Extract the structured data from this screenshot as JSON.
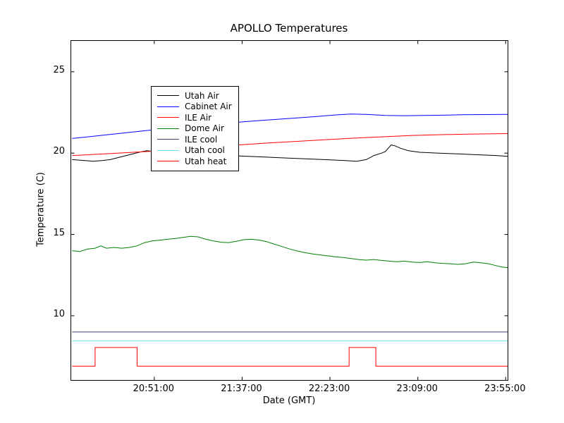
{
  "chart_data": {
    "type": "line",
    "title": "APOLLO Temperatures",
    "xlabel": "Date (GMT)",
    "ylabel": "Temperature (C)",
    "grid": false,
    "legend_position": "upper-left",
    "x_axis": {
      "unit": "minutes since midnight GMT",
      "lim": [
        1207.5,
        1436
      ],
      "ticks": [
        {
          "minute": 1251,
          "label": "20:51:00"
        },
        {
          "minute": 1297,
          "label": "21:37:00"
        },
        {
          "minute": 1343,
          "label": "22:23:00"
        },
        {
          "minute": 1389,
          "label": "23:09:00"
        },
        {
          "minute": 1435,
          "label": "23:55:00"
        }
      ]
    },
    "y_axis": {
      "lim": [
        6.05,
        26.9
      ],
      "ticks": [
        10,
        15,
        20,
        25
      ]
    },
    "series": [
      {
        "name": "Utah Air",
        "color": "#000000",
        "points": [
          [
            1208,
            19.6
          ],
          [
            1214,
            19.55
          ],
          [
            1219,
            19.5
          ],
          [
            1224,
            19.55
          ],
          [
            1228,
            19.6
          ],
          [
            1233,
            19.75
          ],
          [
            1238,
            19.9
          ],
          [
            1243,
            20.05
          ],
          [
            1247,
            20.15
          ],
          [
            1251,
            20.1
          ],
          [
            1256,
            20.05
          ],
          [
            1262,
            20.0
          ],
          [
            1270,
            19.95
          ],
          [
            1280,
            19.9
          ],
          [
            1290,
            19.85
          ],
          [
            1300,
            19.8
          ],
          [
            1310,
            19.75
          ],
          [
            1320,
            19.7
          ],
          [
            1330,
            19.65
          ],
          [
            1340,
            19.6
          ],
          [
            1350,
            19.55
          ],
          [
            1357,
            19.5
          ],
          [
            1362,
            19.6
          ],
          [
            1366,
            19.85
          ],
          [
            1370,
            20.0
          ],
          [
            1372,
            20.1
          ],
          [
            1375,
            20.5
          ],
          [
            1377,
            20.45
          ],
          [
            1380,
            20.3
          ],
          [
            1384,
            20.15
          ],
          [
            1390,
            20.05
          ],
          [
            1400,
            20.0
          ],
          [
            1410,
            19.95
          ],
          [
            1420,
            19.9
          ],
          [
            1430,
            19.85
          ],
          [
            1436,
            19.8
          ]
        ]
      },
      {
        "name": "Cabinet Air",
        "color": "#0000ff",
        "points": [
          [
            1208,
            20.9
          ],
          [
            1220,
            21.05
          ],
          [
            1232,
            21.2
          ],
          [
            1244,
            21.35
          ],
          [
            1256,
            21.5
          ],
          [
            1267,
            21.6
          ],
          [
            1278,
            21.72
          ],
          [
            1290,
            21.85
          ],
          [
            1300,
            21.95
          ],
          [
            1312,
            22.05
          ],
          [
            1324,
            22.15
          ],
          [
            1336,
            22.25
          ],
          [
            1346,
            22.35
          ],
          [
            1354,
            22.4
          ],
          [
            1362,
            22.38
          ],
          [
            1372,
            22.32
          ],
          [
            1382,
            22.3
          ],
          [
            1392,
            22.32
          ],
          [
            1402,
            22.33
          ],
          [
            1412,
            22.36
          ],
          [
            1424,
            22.37
          ],
          [
            1436,
            22.38
          ]
        ]
      },
      {
        "name": "ILE Air",
        "color": "#ff0000",
        "points": [
          [
            1208,
            19.85
          ],
          [
            1225,
            19.95
          ],
          [
            1240,
            20.05
          ],
          [
            1251,
            20.12
          ],
          [
            1265,
            20.25
          ],
          [
            1280,
            20.38
          ],
          [
            1295,
            20.5
          ],
          [
            1310,
            20.62
          ],
          [
            1325,
            20.72
          ],
          [
            1340,
            20.82
          ],
          [
            1355,
            20.92
          ],
          [
            1370,
            21.0
          ],
          [
            1385,
            21.08
          ],
          [
            1400,
            21.13
          ],
          [
            1415,
            21.17
          ],
          [
            1436,
            21.2
          ]
        ]
      },
      {
        "name": "Dome Air",
        "color": "#007f00",
        "points": [
          [
            1208,
            14.0
          ],
          [
            1212,
            13.95
          ],
          [
            1216,
            14.1
          ],
          [
            1220,
            14.15
          ],
          [
            1223,
            14.3
          ],
          [
            1226,
            14.15
          ],
          [
            1230,
            14.2
          ],
          [
            1234,
            14.15
          ],
          [
            1238,
            14.2
          ],
          [
            1242,
            14.3
          ],
          [
            1246,
            14.5
          ],
          [
            1250,
            14.6
          ],
          [
            1254,
            14.65
          ],
          [
            1258,
            14.7
          ],
          [
            1262,
            14.75
          ],
          [
            1266,
            14.82
          ],
          [
            1270,
            14.88
          ],
          [
            1274,
            14.85
          ],
          [
            1278,
            14.7
          ],
          [
            1282,
            14.6
          ],
          [
            1286,
            14.52
          ],
          [
            1290,
            14.5
          ],
          [
            1294,
            14.58
          ],
          [
            1298,
            14.68
          ],
          [
            1302,
            14.7
          ],
          [
            1306,
            14.65
          ],
          [
            1310,
            14.55
          ],
          [
            1314,
            14.4
          ],
          [
            1318,
            14.25
          ],
          [
            1322,
            14.1
          ],
          [
            1326,
            13.98
          ],
          [
            1330,
            13.88
          ],
          [
            1334,
            13.8
          ],
          [
            1338,
            13.74
          ],
          [
            1342,
            13.68
          ],
          [
            1346,
            13.62
          ],
          [
            1350,
            13.58
          ],
          [
            1354,
            13.52
          ],
          [
            1358,
            13.46
          ],
          [
            1362,
            13.42
          ],
          [
            1366,
            13.46
          ],
          [
            1370,
            13.4
          ],
          [
            1374,
            13.36
          ],
          [
            1378,
            13.32
          ],
          [
            1382,
            13.36
          ],
          [
            1386,
            13.3
          ],
          [
            1390,
            13.27
          ],
          [
            1394,
            13.32
          ],
          [
            1398,
            13.26
          ],
          [
            1402,
            13.22
          ],
          [
            1406,
            13.2
          ],
          [
            1410,
            13.16
          ],
          [
            1414,
            13.2
          ],
          [
            1418,
            13.3
          ],
          [
            1422,
            13.26
          ],
          [
            1426,
            13.2
          ],
          [
            1430,
            13.08
          ],
          [
            1433,
            13.0
          ],
          [
            1436,
            12.95
          ]
        ]
      },
      {
        "name": "ILE cool",
        "color": "#404070",
        "points": [
          [
            1208,
            9.0
          ],
          [
            1436,
            9.0
          ]
        ]
      },
      {
        "name": "Utah cool",
        "color": "#66e0f0",
        "points": [
          [
            1208,
            8.45
          ],
          [
            1436,
            8.45
          ]
        ]
      },
      {
        "name": "Utah heat",
        "color": "#ff0000",
        "points": [
          [
            1208,
            6.9
          ],
          [
            1220,
            6.9
          ],
          [
            1220,
            8.05
          ],
          [
            1242,
            8.05
          ],
          [
            1242,
            6.9
          ],
          [
            1353,
            6.9
          ],
          [
            1353,
            8.05
          ],
          [
            1367,
            8.05
          ],
          [
            1367,
            6.9
          ],
          [
            1436,
            6.9
          ]
        ]
      }
    ]
  }
}
